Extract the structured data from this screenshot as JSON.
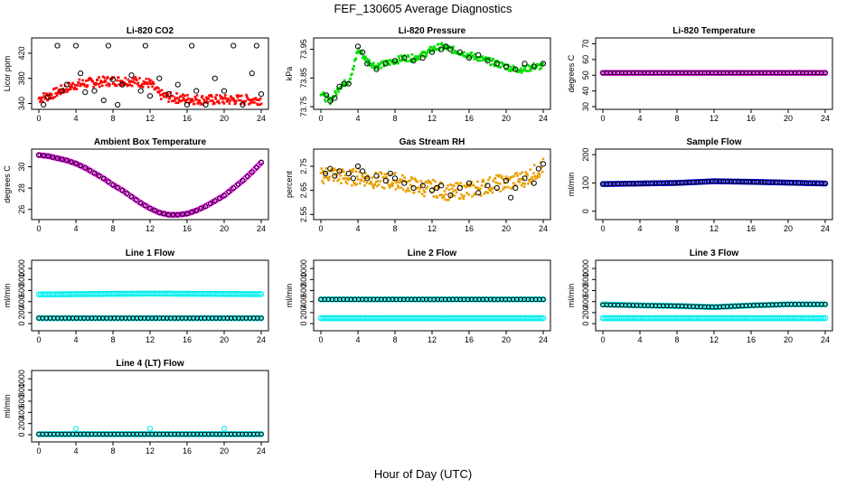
{
  "figure": {
    "title": "FEF_130605  Average Diagnostics",
    "xlabel": "Hour of Day (UTC)"
  },
  "chart_data": [
    {
      "type": "scatter",
      "title": "Li-820 CO2",
      "ylabel": "Licor ppm",
      "xlim": [
        0,
        24
      ],
      "ylim": [
        335,
        440
      ],
      "xticks": [
        0,
        4,
        8,
        12,
        16,
        20,
        24
      ],
      "yticks": [
        340,
        380,
        420
      ],
      "series": [
        {
          "color": "#ff0000",
          "style": "band",
          "x": [
            0,
            1,
            2,
            3,
            4,
            5,
            6,
            7,
            8,
            9,
            10,
            11,
            12,
            13,
            14,
            16,
            18,
            20,
            22,
            24
          ],
          "y": [
            348,
            352,
            358,
            365,
            370,
            372,
            374,
            375,
            376,
            376,
            376,
            374,
            372,
            355,
            350,
            347,
            346,
            346,
            346,
            346
          ],
          "spread": 8
        },
        {
          "color": "#000000",
          "style": "points",
          "x": [
            0.5,
            1,
            2,
            2.5,
            3,
            4,
            4.5,
            5,
            6,
            7,
            7.5,
            8,
            8.5,
            9,
            10,
            11,
            11.5,
            12,
            13,
            14,
            15,
            16,
            16.5,
            17,
            18,
            19,
            20,
            21,
            22,
            23,
            23.5,
            24
          ],
          "y": [
            338,
            350,
            432,
            360,
            370,
            432,
            388,
            358,
            360,
            345,
            432,
            378,
            338,
            370,
            385,
            360,
            432,
            352,
            380,
            355,
            370,
            338,
            432,
            360,
            338,
            380,
            360,
            432,
            338,
            388,
            432,
            355
          ]
        }
      ]
    },
    {
      "type": "scatter",
      "title": "Li-820 Pressure",
      "ylabel": "kPa",
      "xlim": [
        0,
        24
      ],
      "ylim": [
        73.75,
        73.98
      ],
      "xticks": [
        0,
        4,
        8,
        12,
        16,
        20,
        24
      ],
      "ytick_labels": [
        "73.75",
        "73.85",
        "73.95"
      ],
      "yticks": [
        73.75,
        73.85,
        73.95
      ],
      "series": [
        {
          "color": "#00dd00",
          "style": "band",
          "x": [
            0,
            0.5,
            1,
            1.5,
            2,
            3,
            3.5,
            4,
            5,
            6,
            7,
            8,
            9,
            10,
            11,
            12,
            13,
            14,
            15,
            16,
            17,
            18,
            19,
            20,
            21,
            22,
            23,
            24
          ],
          "y": [
            73.8,
            73.78,
            73.77,
            73.79,
            73.82,
            73.84,
            73.88,
            73.95,
            73.91,
            73.89,
            73.9,
            73.91,
            73.92,
            73.92,
            73.93,
            73.95,
            73.96,
            73.95,
            73.94,
            73.93,
            73.92,
            73.91,
            73.9,
            73.89,
            73.88,
            73.88,
            73.89,
            73.89
          ],
          "spread": 0.012
        },
        {
          "color": "#000000",
          "style": "points",
          "x": [
            0.6,
            1,
            1.5,
            2,
            2.5,
            3,
            4,
            4.5,
            5,
            6,
            7,
            8,
            9,
            10,
            11,
            12,
            13,
            13.5,
            14,
            15,
            16,
            17,
            18,
            19,
            20,
            21,
            22,
            23,
            24
          ],
          "y": [
            73.79,
            73.77,
            73.78,
            73.82,
            73.83,
            73.83,
            73.96,
            73.94,
            73.9,
            73.88,
            73.9,
            73.91,
            73.92,
            73.91,
            73.92,
            73.94,
            73.95,
            73.96,
            73.95,
            73.94,
            73.92,
            73.93,
            73.91,
            73.9,
            73.89,
            73.88,
            73.9,
            73.89,
            73.9
          ]
        }
      ]
    },
    {
      "type": "scatter",
      "title": "Li-820 Temperature",
      "ylabel": "degrees C",
      "xlim": [
        0,
        24
      ],
      "ylim": [
        30,
        72
      ],
      "xticks": [
        0,
        4,
        8,
        12,
        16,
        20,
        24
      ],
      "yticks": [
        30,
        40,
        50,
        60,
        70
      ],
      "series": [
        {
          "color": "#ff00ff",
          "style": "flat",
          "x": [
            0,
            24
          ],
          "y": [
            51.5,
            51.5
          ]
        },
        {
          "color": "#000000",
          "style": "dense",
          "x": [
            0,
            24
          ],
          "y": [
            51.5,
            51.5
          ]
        }
      ]
    },
    {
      "type": "scatter",
      "title": "Ambient Box Temperature",
      "ylabel": "degrees C",
      "xlim": [
        0,
        24
      ],
      "ylim": [
        25.3,
        31.4
      ],
      "xticks": [
        0,
        4,
        8,
        12,
        16,
        20,
        24
      ],
      "yticks": [
        26,
        28,
        30
      ],
      "series": [
        {
          "color": "#ff00ff",
          "style": "curve",
          "x": [
            0,
            1,
            2,
            3,
            4,
            5,
            6,
            7,
            8,
            9,
            10,
            11,
            12,
            13,
            14,
            15,
            16,
            17,
            18,
            19,
            20,
            21,
            22,
            23,
            24
          ],
          "y": [
            31.1,
            31.0,
            30.8,
            30.6,
            30.3,
            29.9,
            29.4,
            28.9,
            28.3,
            27.8,
            27.2,
            26.6,
            26.1,
            25.7,
            25.5,
            25.5,
            25.6,
            25.9,
            26.3,
            26.8,
            27.3,
            28.0,
            28.7,
            29.5,
            30.4
          ]
        },
        {
          "color": "#000000",
          "style": "dense-curve",
          "x": [
            0,
            1,
            2,
            3,
            4,
            5,
            6,
            7,
            8,
            9,
            10,
            11,
            12,
            13,
            14,
            15,
            16,
            17,
            18,
            19,
            20,
            21,
            22,
            23,
            24
          ],
          "y": [
            31.1,
            31.0,
            30.8,
            30.6,
            30.3,
            29.9,
            29.4,
            28.9,
            28.3,
            27.8,
            27.2,
            26.6,
            26.1,
            25.7,
            25.5,
            25.5,
            25.6,
            25.9,
            26.3,
            26.8,
            27.3,
            28.0,
            28.7,
            29.5,
            30.4
          ]
        }
      ]
    },
    {
      "type": "scatter",
      "title": "Gas Stream RH",
      "ylabel": "percent",
      "xlim": [
        0,
        24
      ],
      "ylim": [
        2.54,
        2.81
      ],
      "xticks": [
        0,
        4,
        8,
        12,
        16,
        20,
        24
      ],
      "ytick_labels": [
        "2.55",
        "2.65",
        "2.75"
      ],
      "yticks": [
        2.55,
        2.65,
        2.75
      ],
      "series": [
        {
          "color": "#e8a000",
          "style": "band",
          "x": [
            0,
            1,
            2,
            3,
            4,
            5,
            6,
            7,
            8,
            9,
            10,
            11,
            12,
            13,
            14,
            15,
            16,
            17,
            18,
            19,
            20,
            21,
            22,
            23,
            24
          ],
          "y": [
            2.71,
            2.72,
            2.71,
            2.7,
            2.71,
            2.7,
            2.69,
            2.69,
            2.69,
            2.68,
            2.67,
            2.66,
            2.66,
            2.65,
            2.64,
            2.65,
            2.65,
            2.66,
            2.67,
            2.68,
            2.68,
            2.69,
            2.7,
            2.72,
            2.75
          ],
          "spread": 0.035
        },
        {
          "color": "#000000",
          "style": "points",
          "x": [
            0.5,
            1,
            1.5,
            2,
            3,
            3.5,
            4,
            4.5,
            5,
            6,
            7,
            7.5,
            8,
            9,
            10,
            11,
            12,
            12.5,
            13,
            14,
            15,
            16,
            17,
            18,
            19,
            20,
            20.5,
            21,
            22,
            23,
            23.5,
            24
          ],
          "y": [
            2.72,
            2.74,
            2.71,
            2.73,
            2.72,
            2.7,
            2.75,
            2.73,
            2.7,
            2.71,
            2.69,
            2.72,
            2.7,
            2.68,
            2.66,
            2.67,
            2.65,
            2.66,
            2.67,
            2.63,
            2.66,
            2.68,
            2.64,
            2.67,
            2.66,
            2.69,
            2.62,
            2.66,
            2.7,
            2.68,
            2.74,
            2.76
          ]
        }
      ]
    },
    {
      "type": "scatter",
      "title": "Sample Flow",
      "ylabel": "ml/min",
      "xlim": [
        0,
        24
      ],
      "ylim": [
        -20,
        210
      ],
      "xticks": [
        0,
        4,
        8,
        12,
        16,
        20,
        24
      ],
      "yticks": [
        0,
        100,
        200
      ],
      "series": [
        {
          "color": "#0000ff",
          "style": "flat",
          "x": [
            0,
            8,
            12,
            16,
            24
          ],
          "y": [
            96,
            100,
            106,
            104,
            98
          ]
        },
        {
          "color": "#000000",
          "style": "dense",
          "x": [
            0,
            8,
            12,
            16,
            24
          ],
          "y": [
            96,
            100,
            106,
            104,
            98
          ]
        }
      ]
    },
    {
      "type": "scatter",
      "title": "Line 1 Flow",
      "ylabel": "ml/min",
      "xlim": [
        0,
        24
      ],
      "ylim": [
        -80,
        1100
      ],
      "xticks": [
        0,
        4,
        8,
        12,
        16,
        20,
        24
      ],
      "yticks": [
        0,
        200,
        400,
        600,
        800,
        1000
      ],
      "series": [
        {
          "color": "#00eeee",
          "style": "flat",
          "x": [
            0,
            12,
            24
          ],
          "y": [
            530,
            545,
            535
          ]
        },
        {
          "color": "#00eeee",
          "style": "flat",
          "x": [
            0,
            24
          ],
          "y": [
            100,
            100
          ]
        },
        {
          "color": "#000000",
          "style": "dense",
          "x": [
            0,
            24
          ],
          "y": [
            100,
            100
          ]
        }
      ]
    },
    {
      "type": "scatter",
      "title": "Line 2 Flow",
      "ylabel": "ml/min",
      "xlim": [
        0,
        24
      ],
      "ylim": [
        -80,
        1100
      ],
      "xticks": [
        0,
        4,
        8,
        12,
        16,
        20,
        24
      ],
      "yticks": [
        0,
        200,
        400,
        600,
        800,
        1000
      ],
      "series": [
        {
          "color": "#00eeee",
          "style": "flat",
          "x": [
            0,
            24
          ],
          "y": [
            100,
            100
          ]
        },
        {
          "color": "#00eeee",
          "style": "flat",
          "x": [
            0,
            24
          ],
          "y": [
            440,
            440
          ]
        },
        {
          "color": "#000000",
          "style": "dense",
          "x": [
            0,
            24
          ],
          "y": [
            440,
            440
          ]
        }
      ]
    },
    {
      "type": "scatter",
      "title": "Line 3 Flow",
      "ylabel": "ml/min",
      "xlim": [
        0,
        24
      ],
      "ylim": [
        -80,
        1100
      ],
      "xticks": [
        0,
        4,
        8,
        12,
        16,
        20,
        24
      ],
      "yticks": [
        0,
        200,
        400,
        600,
        800,
        1000
      ],
      "series": [
        {
          "color": "#00eeee",
          "style": "flat",
          "x": [
            0,
            24
          ],
          "y": [
            100,
            100
          ]
        },
        {
          "color": "#00eeee",
          "style": "flat",
          "x": [
            0,
            4,
            8,
            12,
            16,
            20,
            24
          ],
          "y": [
            350,
            330,
            320,
            300,
            330,
            350,
            350
          ]
        },
        {
          "color": "#000000",
          "style": "dense",
          "x": [
            0,
            4,
            8,
            12,
            16,
            20,
            24
          ],
          "y": [
            340,
            330,
            320,
            300,
            330,
            350,
            350
          ]
        }
      ]
    },
    {
      "type": "scatter",
      "title": "Line 4 (LT) Flow",
      "ylabel": "ml/min",
      "xlim": [
        0,
        24
      ],
      "ylim": [
        -80,
        1100
      ],
      "xticks": [
        0,
        4,
        8,
        12,
        16,
        20,
        24
      ],
      "yticks": [
        0,
        200,
        400,
        600,
        800,
        1000
      ],
      "series": [
        {
          "color": "#00eeee",
          "style": "flat",
          "x": [
            0,
            24
          ],
          "y": [
            10,
            10
          ]
        },
        {
          "color": "#00eeee",
          "style": "points",
          "x": [
            4,
            12,
            20
          ],
          "y": [
            110,
            110,
            110
          ]
        },
        {
          "color": "#000000",
          "style": "dense",
          "x": [
            0,
            24
          ],
          "y": [
            10,
            10
          ]
        }
      ]
    }
  ]
}
